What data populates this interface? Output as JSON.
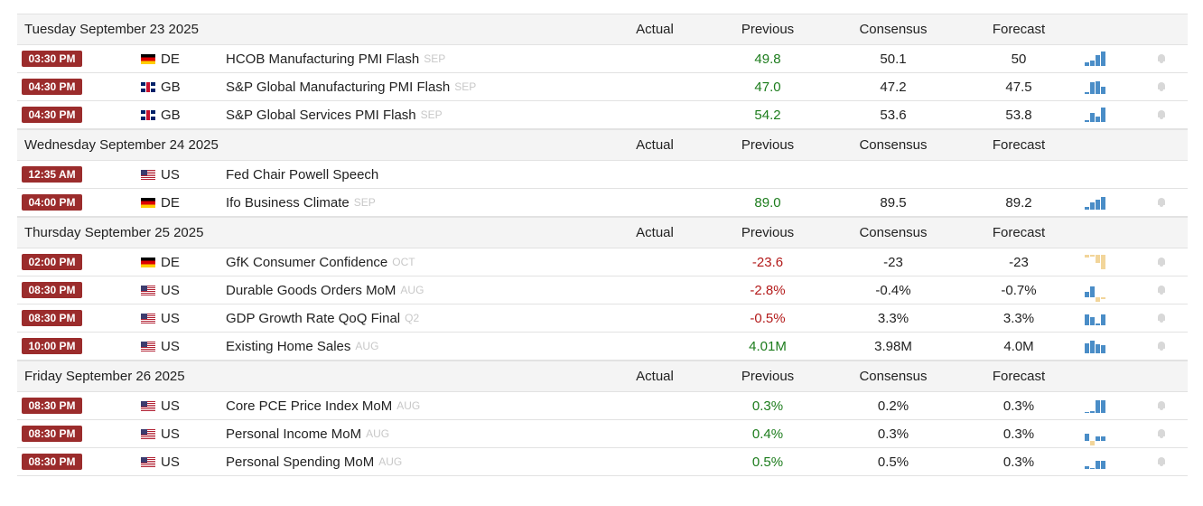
{
  "columns": {
    "actual": "Actual",
    "previous": "Previous",
    "consensus": "Consensus",
    "forecast": "Forecast"
  },
  "colors": {
    "time_badge": "#9b2c2c",
    "positive": "#1c7c1c",
    "negative": "#b31b1b",
    "spark_up": "#4a8dc7",
    "spark_down": "#f2d59a"
  },
  "days": [
    {
      "date": "Tuesday September 23 2025",
      "events": [
        {
          "time": "03:30 PM",
          "flag": "flag-de",
          "country": "DE",
          "name": "HCOB Manufacturing PMI Flash",
          "ref": "SEP",
          "actual": "",
          "previous": "49.8",
          "previous_tone": "pos",
          "consensus": "50.1",
          "forecast": "50",
          "spark": [
            0.25,
            0.35,
            0.75,
            1.0
          ],
          "spark_tone": "up",
          "bell": "bell-icon"
        },
        {
          "time": "04:30 PM",
          "flag": "flag-gb",
          "country": "GB",
          "name": "S&P Global Manufacturing PMI Flash",
          "ref": "SEP",
          "actual": "",
          "previous": "47.0",
          "previous_tone": "pos",
          "consensus": "47.2",
          "forecast": "47.5",
          "spark": [
            0.15,
            0.8,
            0.9,
            0.5
          ],
          "spark_tone": "up",
          "bell": "bell-icon"
        },
        {
          "time": "04:30 PM",
          "flag": "flag-gb",
          "country": "GB",
          "name": "S&P Global Services PMI Flash",
          "ref": "SEP",
          "actual": "",
          "previous": "54.2",
          "previous_tone": "pos",
          "consensus": "53.6",
          "forecast": "53.8",
          "spark": [
            0.15,
            0.6,
            0.4,
            1.0
          ],
          "spark_tone": "up",
          "bell": "bell-icon"
        }
      ]
    },
    {
      "date": "Wednesday September 24 2025",
      "events": [
        {
          "time": "12:35 AM",
          "flag": "flag-us",
          "country": "US",
          "name": "Fed Chair Powell Speech",
          "ref": "",
          "actual": "",
          "previous": "",
          "previous_tone": "",
          "consensus": "",
          "forecast": "",
          "spark": [],
          "spark_tone": "up",
          "bell": ""
        },
        {
          "time": "04:00 PM",
          "flag": "flag-de",
          "country": "DE",
          "name": "Ifo Business Climate",
          "ref": "SEP",
          "actual": "",
          "previous": "89.0",
          "previous_tone": "pos",
          "consensus": "89.5",
          "forecast": "89.2",
          "spark": [
            0.2,
            0.5,
            0.7,
            0.9
          ],
          "spark_tone": "up",
          "bell": "bell-icon"
        }
      ]
    },
    {
      "date": "Thursday September 25 2025",
      "events": [
        {
          "time": "02:00 PM",
          "flag": "flag-de",
          "country": "DE",
          "name": "GfK Consumer Confidence",
          "ref": "OCT",
          "actual": "",
          "previous": "-23.6",
          "previous_tone": "neg",
          "consensus": "-23",
          "forecast": "-23",
          "spark": [
            0.2,
            0.15,
            0.55,
            1.0
          ],
          "spark_tone": "down",
          "bell": "bell-icon"
        },
        {
          "time": "08:30 PM",
          "flag": "flag-us",
          "country": "US",
          "name": "Durable Goods Orders MoM",
          "ref": "AUG",
          "actual": "",
          "previous": "-2.8%",
          "previous_tone": "neg",
          "consensus": "-0.4%",
          "forecast": "-0.7%",
          "spark": [
            0.35,
            0.75,
            -0.3,
            -0.1
          ],
          "spark_tone": "mixed",
          "bell": "bell-icon"
        },
        {
          "time": "08:30 PM",
          "flag": "flag-us",
          "country": "US",
          "name": "GDP Growth Rate QoQ Final",
          "ref": "Q2",
          "actual": "",
          "previous": "-0.5%",
          "previous_tone": "neg",
          "consensus": "3.3%",
          "forecast": "3.3%",
          "spark": [
            0.75,
            0.55,
            0.1,
            0.75
          ],
          "spark_tone": "up",
          "bell": "bell-icon"
        },
        {
          "time": "10:00 PM",
          "flag": "flag-us",
          "country": "US",
          "name": "Existing Home Sales",
          "ref": "AUG",
          "actual": "",
          "previous": "4.01M",
          "previous_tone": "pos",
          "consensus": "3.98M",
          "forecast": "4.0M",
          "spark": [
            0.7,
            0.9,
            0.65,
            0.55
          ],
          "spark_tone": "up",
          "bell": "bell-icon"
        }
      ]
    },
    {
      "date": "Friday September 26 2025",
      "events": [
        {
          "time": "08:30 PM",
          "flag": "flag-us",
          "country": "US",
          "name": "Core PCE Price Index MoM",
          "ref": "AUG",
          "actual": "",
          "previous": "0.3%",
          "previous_tone": "pos",
          "consensus": "0.2%",
          "forecast": "0.3%",
          "spark": [
            0.05,
            0.1,
            0.9,
            0.9
          ],
          "spark_tone": "up",
          "bell": "bell-icon"
        },
        {
          "time": "08:30 PM",
          "flag": "flag-us",
          "country": "US",
          "name": "Personal Income MoM",
          "ref": "AUG",
          "actual": "",
          "previous": "0.4%",
          "previous_tone": "pos",
          "consensus": "0.3%",
          "forecast": "0.3%",
          "spark": [
            0.5,
            -0.3,
            0.3,
            0.3
          ],
          "spark_tone": "mixed",
          "bell": "bell-icon"
        },
        {
          "time": "08:30 PM",
          "flag": "flag-us",
          "country": "US",
          "name": "Personal Spending MoM",
          "ref": "AUG",
          "actual": "",
          "previous": "0.5%",
          "previous_tone": "pos",
          "consensus": "0.5%",
          "forecast": "0.3%",
          "spark": [
            0.2,
            0.05,
            0.55,
            0.55
          ],
          "spark_tone": "up",
          "bell": "bell-icon"
        }
      ]
    }
  ]
}
